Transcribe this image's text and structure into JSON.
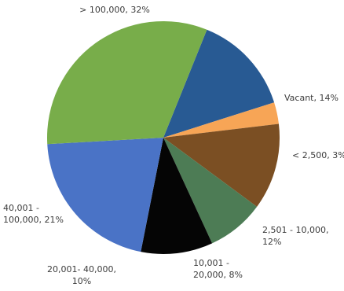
{
  "chart_data": {
    "type": "pie",
    "title": "",
    "start_angle_deg": 22,
    "direction": "clockwise",
    "slices": [
      {
        "label_lines": [
          "Vacant, 14%"
        ],
        "category": "Vacant",
        "value": 14,
        "color": "#285a93"
      },
      {
        "label_lines": [
          "< 2,500, 3%"
        ],
        "category": "< 2,500",
        "value": 3,
        "color": "#f7a556"
      },
      {
        "label_lines": [
          "2,501 - 10,000,",
          "12%"
        ],
        "category": "2,501 - 10,000",
        "value": 12,
        "color": "#7b4f23"
      },
      {
        "label_lines": [
          "10,001 -",
          "20,000, 8%"
        ],
        "category": "10,001 - 20,000",
        "value": 8,
        "color": "#4d7c55"
      },
      {
        "label_lines": [
          "20,001- 40,000,",
          "10%"
        ],
        "category": "20,001- 40,000",
        "value": 10,
        "color": "#050505"
      },
      {
        "label_lines": [
          "40,001 -",
          "100,000, 21%"
        ],
        "category": "40,001 - 100,000",
        "value": 21,
        "color": "#4a73c6"
      },
      {
        "label_lines": [
          "> 100,000, 32%"
        ],
        "category": "> 100,000",
        "value": 32,
        "color": "#78ad4a"
      }
    ]
  }
}
